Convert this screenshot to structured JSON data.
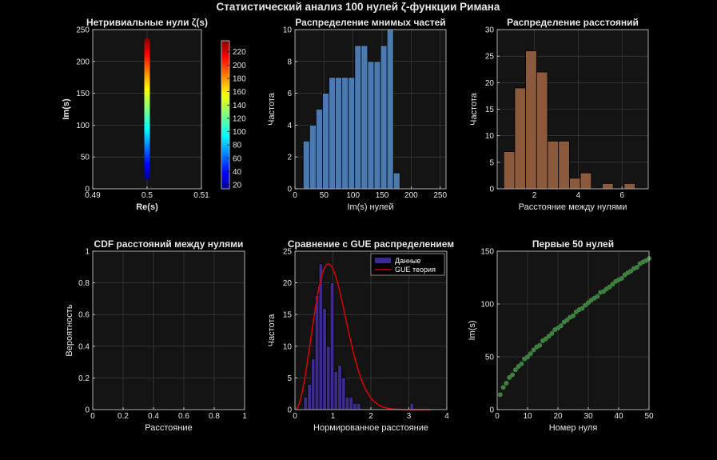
{
  "figure": {
    "title": "Статистический анализ 100 нулей ζ-функции Римана"
  },
  "colors": {
    "background": "#000000",
    "axes_bg": "#141414",
    "grid": "#444444",
    "text": "#e6e6e6",
    "bar_blue": "#4a7ab0",
    "bar_brown": "#8b5a3c",
    "gue_bar": "#3d2a8c",
    "gue_line": "#d40000",
    "points": "#3d8040"
  },
  "chart_data": [
    {
      "id": "zeros",
      "type": "scatter",
      "title": "Нетривиальные нули ζ(s)",
      "xlabel": "Re(s)",
      "ylabel": "Im(s)",
      "xlim": [
        0.49,
        0.51
      ],
      "ylim": [
        0,
        250
      ],
      "xticks": [
        0.49,
        0.5,
        0.51
      ],
      "xtick_labels": [
        "0.49",
        "0.5",
        "0.51"
      ],
      "yticks": [
        0,
        50,
        100,
        150,
        200,
        250
      ],
      "colormap": "jet",
      "x": 0.5,
      "y_min": 14.13,
      "y_max": 236.5,
      "colorbar": {
        "range": [
          14.13,
          236.5
        ],
        "ticks": [
          20,
          40,
          60,
          80,
          100,
          120,
          140,
          160,
          180,
          200,
          220
        ]
      }
    },
    {
      "id": "imag_hist",
      "type": "bar",
      "title": "Распределение мнимых частей",
      "xlabel": "Im(s) нулей",
      "ylabel": "Частота",
      "xlim": [
        0,
        260
      ],
      "ylim": [
        0,
        10
      ],
      "xticks": [
        0,
        50,
        100,
        150,
        200,
        250
      ],
      "yticks": [
        0,
        2,
        4,
        6,
        8,
        10
      ],
      "bin_start": 14.1,
      "bin_width": 11.1,
      "values": [
        3,
        4,
        5,
        6,
        7,
        7,
        7,
        7,
        9,
        9,
        8,
        8,
        9,
        10,
        1
      ]
    },
    {
      "id": "spacing_hist",
      "type": "bar",
      "title": "Распределение расстояний",
      "xlabel": "Расстояние между нулями",
      "ylabel": "Частота",
      "xlim": [
        0.3,
        7.2
      ],
      "ylim": [
        0,
        30
      ],
      "xticks": [
        2,
        4,
        6
      ],
      "yticks": [
        0,
        5,
        10,
        15,
        20,
        25,
        30
      ],
      "bin_start": 0.6,
      "bin_width": 0.5,
      "values": [
        7,
        19,
        26,
        22,
        9,
        9,
        2,
        3,
        0,
        1,
        0,
        1
      ]
    },
    {
      "id": "cdf",
      "type": "line",
      "title": "CDF расстояний между нулями",
      "xlabel": "Расстояние",
      "ylabel": "Вероятность",
      "xlim": [
        0,
        1
      ],
      "ylim": [
        0,
        1
      ],
      "xticks": [
        0,
        0.2,
        0.4,
        0.6,
        0.8,
        1
      ],
      "yticks": [
        0,
        0.2,
        0.4,
        0.6,
        0.8,
        1
      ],
      "series": []
    },
    {
      "id": "gue",
      "type": "bar",
      "title": "Сравнение с GUE распределением",
      "xlabel": "Нормированное расстояние",
      "ylabel": "Частота",
      "xlim": [
        0,
        4
      ],
      "ylim": [
        0,
        25
      ],
      "xticks": [
        0,
        1,
        2,
        3,
        4
      ],
      "yticks": [
        0,
        5,
        10,
        15,
        20,
        25
      ],
      "bin_start": 0.23,
      "bin_width": 0.1,
      "values": [
        2,
        4,
        8,
        18,
        23,
        16,
        10,
        20,
        6,
        7,
        5,
        2,
        2,
        1,
        1,
        0,
        0,
        0,
        0,
        0,
        0,
        0,
        0,
        0,
        0,
        0,
        0,
        0,
        1
      ],
      "legend": {
        "bars": "Данные",
        "line": "GUE теория",
        "position": "top-right"
      },
      "gue_curve": {
        "peak_x": 0.88,
        "peak_y": 23,
        "formula": "32/pi^2 * s^2 * exp(-4 s^2 / pi)"
      }
    },
    {
      "id": "first50",
      "type": "scatter",
      "title": "Первые 50 нулей",
      "xlabel": "Номер нуля",
      "ylabel": "Im(s)",
      "xlim": [
        0,
        50
      ],
      "ylim": [
        0,
        150
      ],
      "xticks": [
        0,
        10,
        20,
        30,
        40,
        50
      ],
      "yticks": [
        0,
        50,
        100,
        150
      ],
      "x": [
        1,
        2,
        3,
        4,
        5,
        6,
        7,
        8,
        9,
        10,
        11,
        12,
        13,
        14,
        15,
        16,
        17,
        18,
        19,
        20,
        21,
        22,
        23,
        24,
        25,
        26,
        27,
        28,
        29,
        30,
        31,
        32,
        33,
        34,
        35,
        36,
        37,
        38,
        39,
        40,
        41,
        42,
        43,
        44,
        45,
        46,
        47,
        48,
        49,
        50
      ],
      "y": [
        14.13,
        21.02,
        25.01,
        30.42,
        32.94,
        37.59,
        40.92,
        43.33,
        48.01,
        49.77,
        52.97,
        56.45,
        59.35,
        60.83,
        65.11,
        67.08,
        69.55,
        72.07,
        75.7,
        77.14,
        79.34,
        82.91,
        84.74,
        87.43,
        88.81,
        92.49,
        94.65,
        95.87,
        98.83,
        101.32,
        103.73,
        105.45,
        107.17,
        111.03,
        111.87,
        114.32,
        116.23,
        118.79,
        121.37,
        122.95,
        124.26,
        127.52,
        129.58,
        131.09,
        133.5,
        134.76,
        138.12,
        139.74,
        141.12,
        143.11
      ]
    }
  ]
}
